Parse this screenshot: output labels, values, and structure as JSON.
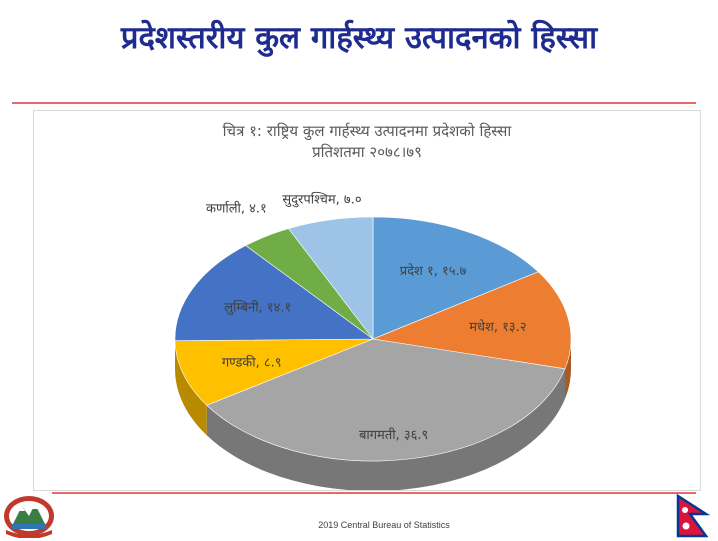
{
  "slide": {
    "title": "प्रदेशस्तरीय कुल गार्हस्थ्य उत्पादनको हिस्सा",
    "footer": "2019 Central  Bureau of Statistics"
  },
  "chart_data": {
    "type": "pie",
    "title": "चित्र १: राष्ट्रिय कुल गार्हस्थ्य उत्पादनमा प्रदेशको हिस्सा",
    "subtitle": "प्रतिशतमा २०७८।७९",
    "slices": [
      {
        "name": "प्रदेश १",
        "label": "प्रदेश १, १५.७",
        "value": 15.7,
        "color": "#5b9bd5"
      },
      {
        "name": "मधेश",
        "label": "मधेश, १३.२",
        "value": 13.2,
        "color": "#ed7d31"
      },
      {
        "name": "बागमती",
        "label": "बागमती, ३६.९",
        "value": 36.9,
        "color": "#a5a5a5"
      },
      {
        "name": "गण्डकी",
        "label": "गण्डकी, ८.९",
        "value": 8.9,
        "color": "#ffc000"
      },
      {
        "name": "लुम्बिनी",
        "label": "लुम्बिनी, १४.१",
        "value": 14.1,
        "color": "#4472c4"
      },
      {
        "name": "कर्णाली",
        "label": "कर्णाली, ४.१",
        "value": 4.1,
        "color": "#70ad47"
      },
      {
        "name": "सुदुरपश्चिम",
        "label": "सुदुरपश्चिम, ७.०",
        "value": 7.0,
        "color": "#9dc3e6"
      }
    ]
  }
}
